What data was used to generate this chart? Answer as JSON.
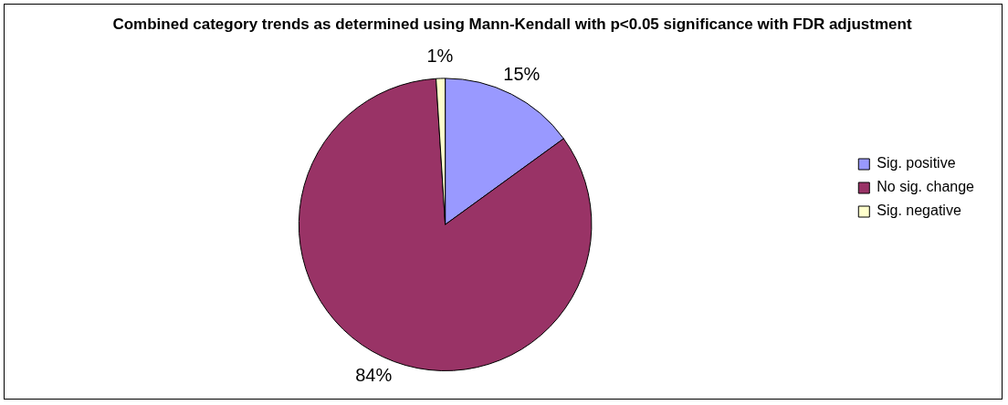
{
  "chart_data": {
    "type": "pie",
    "title": "Combined category trends as determined using Mann-Kendall with p<0.05 significance with FDR adjustment",
    "categories": [
      "Sig. positive",
      "No sig. change",
      "Sig. negative"
    ],
    "values": [
      15,
      84,
      1
    ],
    "colors": [
      "#9999ff",
      "#993366",
      "#ffffcc"
    ],
    "value_labels": [
      "15%",
      "84%",
      "1%"
    ],
    "legend": "right"
  }
}
